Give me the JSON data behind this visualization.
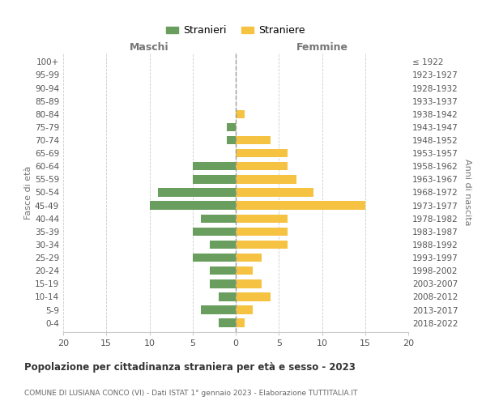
{
  "age_groups": [
    "0-4",
    "5-9",
    "10-14",
    "15-19",
    "20-24",
    "25-29",
    "30-34",
    "35-39",
    "40-44",
    "45-49",
    "50-54",
    "55-59",
    "60-64",
    "65-69",
    "70-74",
    "75-79",
    "80-84",
    "85-89",
    "90-94",
    "95-99",
    "100+"
  ],
  "birth_years": [
    "2018-2022",
    "2013-2017",
    "2008-2012",
    "2003-2007",
    "1998-2002",
    "1993-1997",
    "1988-1992",
    "1983-1987",
    "1978-1982",
    "1973-1977",
    "1968-1972",
    "1963-1967",
    "1958-1962",
    "1953-1957",
    "1948-1952",
    "1943-1947",
    "1938-1942",
    "1933-1937",
    "1928-1932",
    "1923-1927",
    "≤ 1922"
  ],
  "maschi": [
    2,
    4,
    2,
    3,
    3,
    5,
    3,
    5,
    4,
    10,
    9,
    5,
    5,
    0,
    1,
    1,
    0,
    0,
    0,
    0,
    0
  ],
  "femmine": [
    1,
    2,
    4,
    3,
    2,
    3,
    6,
    6,
    6,
    15,
    9,
    7,
    6,
    6,
    4,
    0,
    1,
    0,
    0,
    0,
    0
  ],
  "maschi_color": "#6a9e5e",
  "femmine_color": "#f5c242",
  "title": "Popolazione per cittadinanza straniera per età e sesso - 2023",
  "subtitle": "COMUNE DI LUSIANA CONCO (VI) - Dati ISTAT 1° gennaio 2023 - Elaborazione TUTTITALIA.IT",
  "xlabel_left": "Maschi",
  "xlabel_right": "Femmine",
  "ylabel_left": "Fasce di età",
  "ylabel_right": "Anni di nascita",
  "legend_maschi": "Stranieri",
  "legend_femmine": "Straniere",
  "xlim": 20,
  "background_color": "#ffffff",
  "grid_color": "#cccccc"
}
